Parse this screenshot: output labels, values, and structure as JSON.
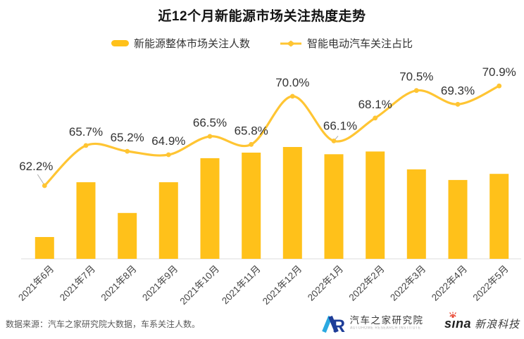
{
  "title": "近12个月新能源市场关注热度走势",
  "chart_data": {
    "type": "combo (bar + smoothed line)",
    "title": "近12个月新能源市场关注热度走势",
    "categories": [
      "2021年6月",
      "2021年7月",
      "2021年8月",
      "2021年9月",
      "2021年10月",
      "2021年11月",
      "2021年12月",
      "2022年1月",
      "2022年2月",
      "2022年3月",
      "2022年4月",
      "2022年5月"
    ],
    "series": [
      {
        "name": "新能源整体市场关注人数",
        "type": "bar",
        "note": "no numeric labels or y-axis shown; values estimated as percent of tallest bar (2021年12月 = 100)",
        "values_relative_pct_of_max": [
          19.5,
          68.5,
          41,
          68.5,
          90,
          95,
          100,
          93.5,
          96,
          80,
          70.5,
          76
        ]
      },
      {
        "name": "智能电动汽车关注占比",
        "type": "line",
        "unit": "%",
        "values": [
          62.2,
          65.7,
          65.2,
          64.9,
          66.5,
          65.8,
          70.0,
          66.1,
          68.1,
          70.5,
          69.3,
          70.9
        ]
      }
    ],
    "legend_position": "top",
    "grid": false,
    "data_labels": "line series only, one decimal + %",
    "x_tick_rotation_deg": -45
  },
  "colors": {
    "bar": "#FFC11A",
    "line": "#FFC533",
    "label_text": "#333333",
    "tick_text": "#454545",
    "axis_line": "#DCDCDC",
    "leader": "#ABABAB",
    "ar_blue_light": "#2BA9E1",
    "ar_blue_dark": "#1E3D98",
    "sina_red": "#E8432E"
  },
  "footer": {
    "source_note": "数据来源：汽车之家研究院大数据，车系关注人数。",
    "autohome": {
      "name": "汽车之家研究院",
      "subtitle": "AUTOHOME RESEARCH INSTITUTE"
    },
    "sina": {
      "brand_s": "s",
      "brand_i": "ı",
      "brand_na": "na",
      "name": "新浪科技"
    }
  }
}
